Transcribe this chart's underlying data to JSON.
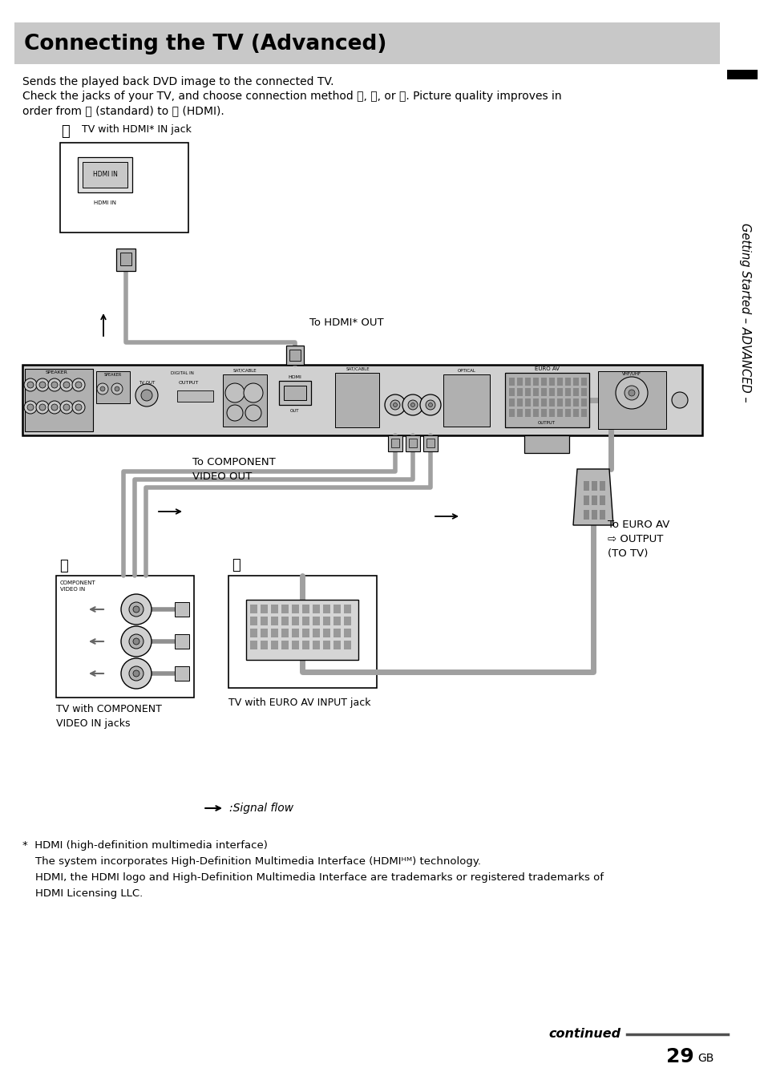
{
  "title": "Connecting the TV (Advanced)",
  "title_bg": "#c8c8c8",
  "page_bg": "#ffffff",
  "body_text_1": "Sends the played back DVD image to the connected TV.",
  "body_text_2": "Check the jacks of your TV, and choose connection method Ⓐ, Ⓑ, or Ⓒ. Picture quality improves in",
  "body_text_3": "order from Ⓐ (standard) to Ⓒ (HDMI).",
  "sidebar_text": "Getting Started – ADVANCED –",
  "footnote_star_line": "*  HDMI (high-definition multimedia interface)",
  "footnote_line1": "The system incorporates High-Definition Multimedia Interface (HDMIᴴᴹ) technology.",
  "footnote_line2": "HDMI, the HDMI logo and High-Definition Multimedia Interface are trademarks or registered trademarks of",
  "footnote_line3": "HDMI Licensing LLC.",
  "signal_flow_label": ":Signal flow",
  "continued_text": "continued",
  "page_number": "29",
  "page_suffix": "GB",
  "tv_hdmi_label": "TV with HDMI* IN jack",
  "to_hdmi_label": "To HDMI* OUT",
  "to_component_label_1": "To COMPONENT",
  "to_component_label_2": "VIDEO OUT",
  "to_euro_label_1": "To EURO AV",
  "to_euro_label_2": "⇨ OUTPUT",
  "to_euro_label_3": "(TO TV)",
  "tv_component_label_1": "TV with COMPONENT",
  "tv_component_label_2": "VIDEO IN jacks",
  "tv_euro_label": "TV with EURO AV INPUT jack",
  "circle_A": "Ⓐ",
  "circle_B": "Ⓑ",
  "circle_C": "Ⓒ",
  "cable_color": "#a0a0a0",
  "device_color": "#d0d0d0",
  "device_dark": "#b0b0b0"
}
